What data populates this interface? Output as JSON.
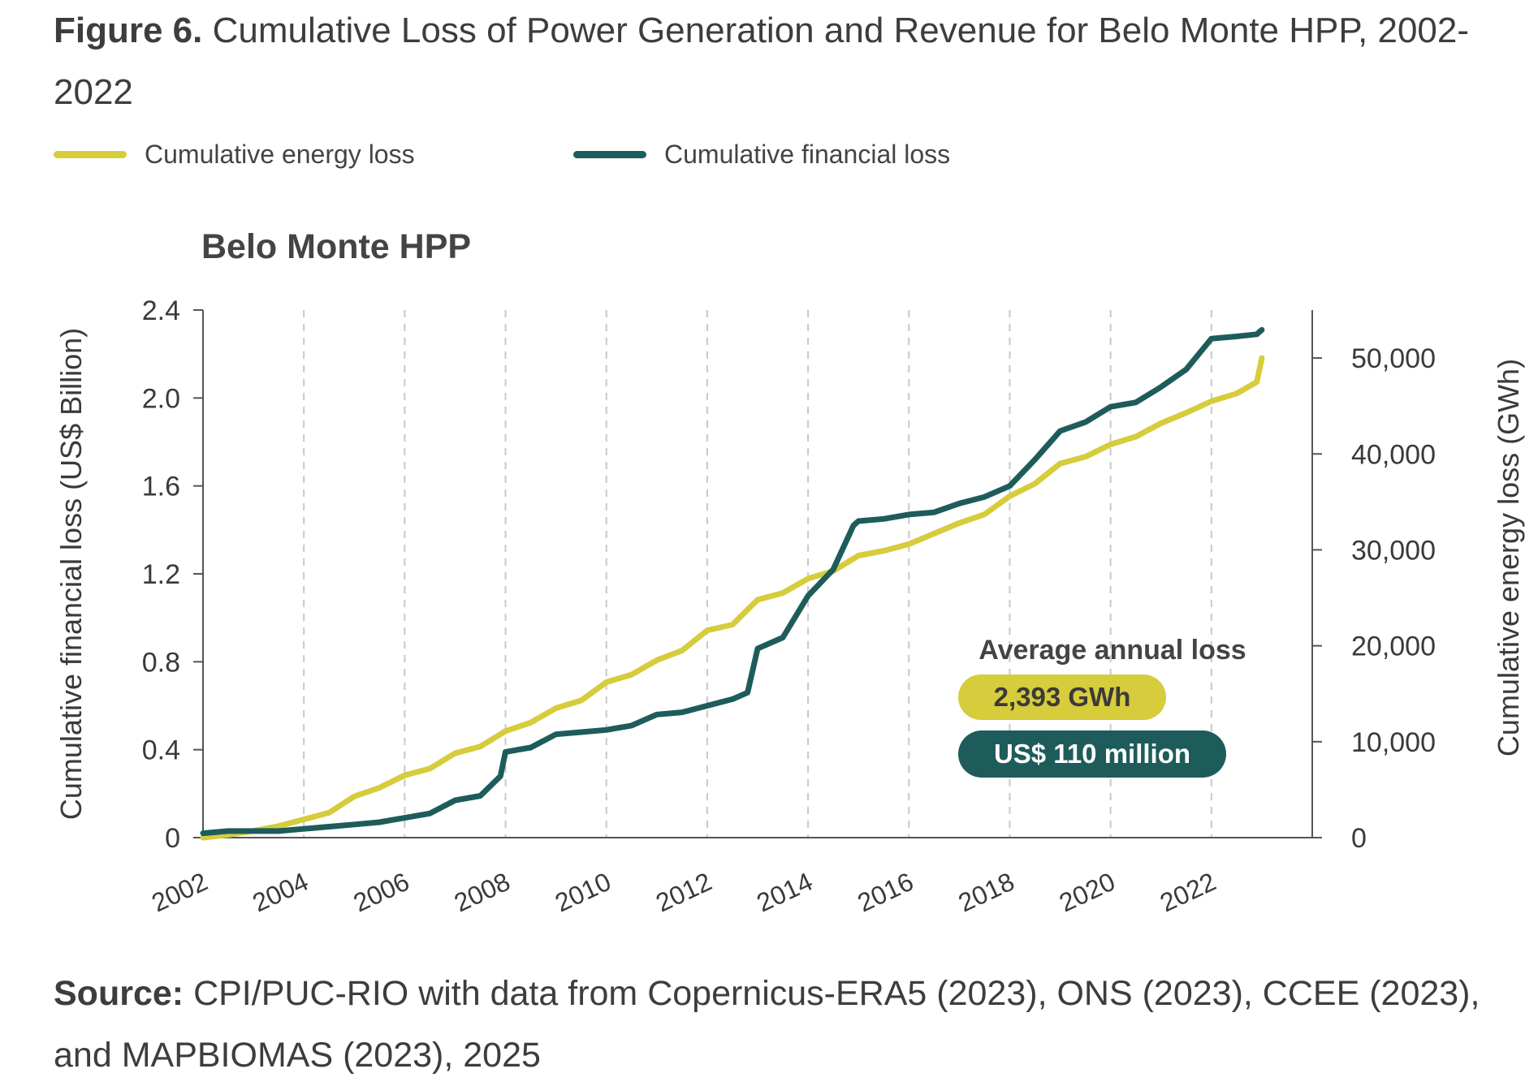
{
  "figure": {
    "label": "Figure 6.",
    "title": "Cumulative Loss of Power Generation and Revenue for Belo Monte HPP, 2002-2022"
  },
  "source": {
    "label": "Source:",
    "text": "CPI/PUC-RIO with data from Copernicus-ERA5 (2023), ONS (2023), CCEE (2023), and MAPBIOMAS (2023), 2025"
  },
  "annotation": {
    "heading": "Average annual loss",
    "energy_value": "2,393 GWh",
    "financial_value": "US$ 110 million"
  },
  "colors": {
    "energy": "#d6cc3c",
    "financial": "#1d5c5a",
    "axis": "#555555",
    "grid": "#c8c8c8",
    "text": "#3a3a3a"
  },
  "chart_data": {
    "type": "line",
    "title": "Belo Monte HPP",
    "xlabel": "",
    "ylabel_left": "Cumulative financial loss (US$ Billion)",
    "ylabel_right": "Cumulative energy loss (GWh)",
    "xlim": [
      2002,
      2024
    ],
    "xticks": [
      "2002",
      "2004",
      "2006",
      "2008",
      "2010",
      "2012",
      "2014",
      "2016",
      "2018",
      "2020",
      "2022"
    ],
    "ylim_left": [
      0,
      2.4
    ],
    "yticks_left": [
      "0",
      "0.4",
      "0.8",
      "1.2",
      "1.6",
      "2.0",
      "2.4"
    ],
    "ylim_right": [
      0,
      55000
    ],
    "yticks_right": [
      "0",
      "10,000",
      "20,000",
      "30,000",
      "40,000",
      "50,000"
    ],
    "grid": "vertical dashed",
    "legend_position": "top",
    "series": [
      {
        "name": "Cumulative energy loss",
        "axis": "right",
        "color": "#d6cc3c",
        "x": [
          2002.0,
          2002.5,
          2003.0,
          2003.5,
          2004.0,
          2004.5,
          2005.0,
          2005.5,
          2006.0,
          2006.5,
          2007.0,
          2007.5,
          2008.0,
          2008.5,
          2009.0,
          2009.5,
          2010.0,
          2010.5,
          2011.0,
          2011.5,
          2012.0,
          2012.5,
          2013.0,
          2013.5,
          2014.0,
          2014.5,
          2015.0,
          2015.5,
          2016.0,
          2016.5,
          2017.0,
          2017.5,
          2018.0,
          2018.5,
          2019.0,
          2019.5,
          2020.0,
          2020.5,
          2021.0,
          2021.5,
          2022.0,
          2022.5,
          2022.9,
          2023.0
        ],
        "values": [
          0,
          300,
          700,
          1200,
          1900,
          2600,
          4300,
          5200,
          6500,
          7200,
          8800,
          9500,
          11100,
          12000,
          13500,
          14300,
          16200,
          17000,
          18500,
          19500,
          21600,
          22200,
          24800,
          25500,
          27000,
          27800,
          29400,
          29900,
          30600,
          31700,
          32800,
          33700,
          35600,
          36900,
          39000,
          39700,
          41000,
          41800,
          43200,
          44300,
          45500,
          46300,
          47500,
          50000
        ]
      },
      {
        "name": "Cumulative financial loss",
        "axis": "left",
        "color": "#1d5c5a",
        "x": [
          2002.0,
          2002.5,
          2003.0,
          2003.5,
          2004.0,
          2004.5,
          2005.0,
          2005.5,
          2006.0,
          2006.5,
          2007.0,
          2007.5,
          2007.9,
          2008.0,
          2008.5,
          2009.0,
          2009.5,
          2010.0,
          2010.5,
          2011.0,
          2011.5,
          2012.0,
          2012.5,
          2012.8,
          2013.0,
          2013.5,
          2014.0,
          2014.5,
          2014.9,
          2015.0,
          2015.5,
          2016.0,
          2016.5,
          2017.0,
          2017.5,
          2018.0,
          2018.5,
          2019.0,
          2019.5,
          2020.0,
          2020.5,
          2021.0,
          2021.5,
          2022.0,
          2022.5,
          2022.9,
          2023.0
        ],
        "values": [
          0.02,
          0.03,
          0.03,
          0.03,
          0.04,
          0.05,
          0.06,
          0.07,
          0.09,
          0.11,
          0.17,
          0.19,
          0.28,
          0.39,
          0.41,
          0.47,
          0.48,
          0.49,
          0.51,
          0.56,
          0.57,
          0.6,
          0.63,
          0.66,
          0.86,
          0.91,
          1.1,
          1.22,
          1.42,
          1.44,
          1.45,
          1.47,
          1.48,
          1.52,
          1.55,
          1.6,
          1.72,
          1.85,
          1.89,
          1.96,
          1.98,
          2.05,
          2.13,
          2.27,
          2.28,
          2.29,
          2.31
        ]
      }
    ]
  }
}
